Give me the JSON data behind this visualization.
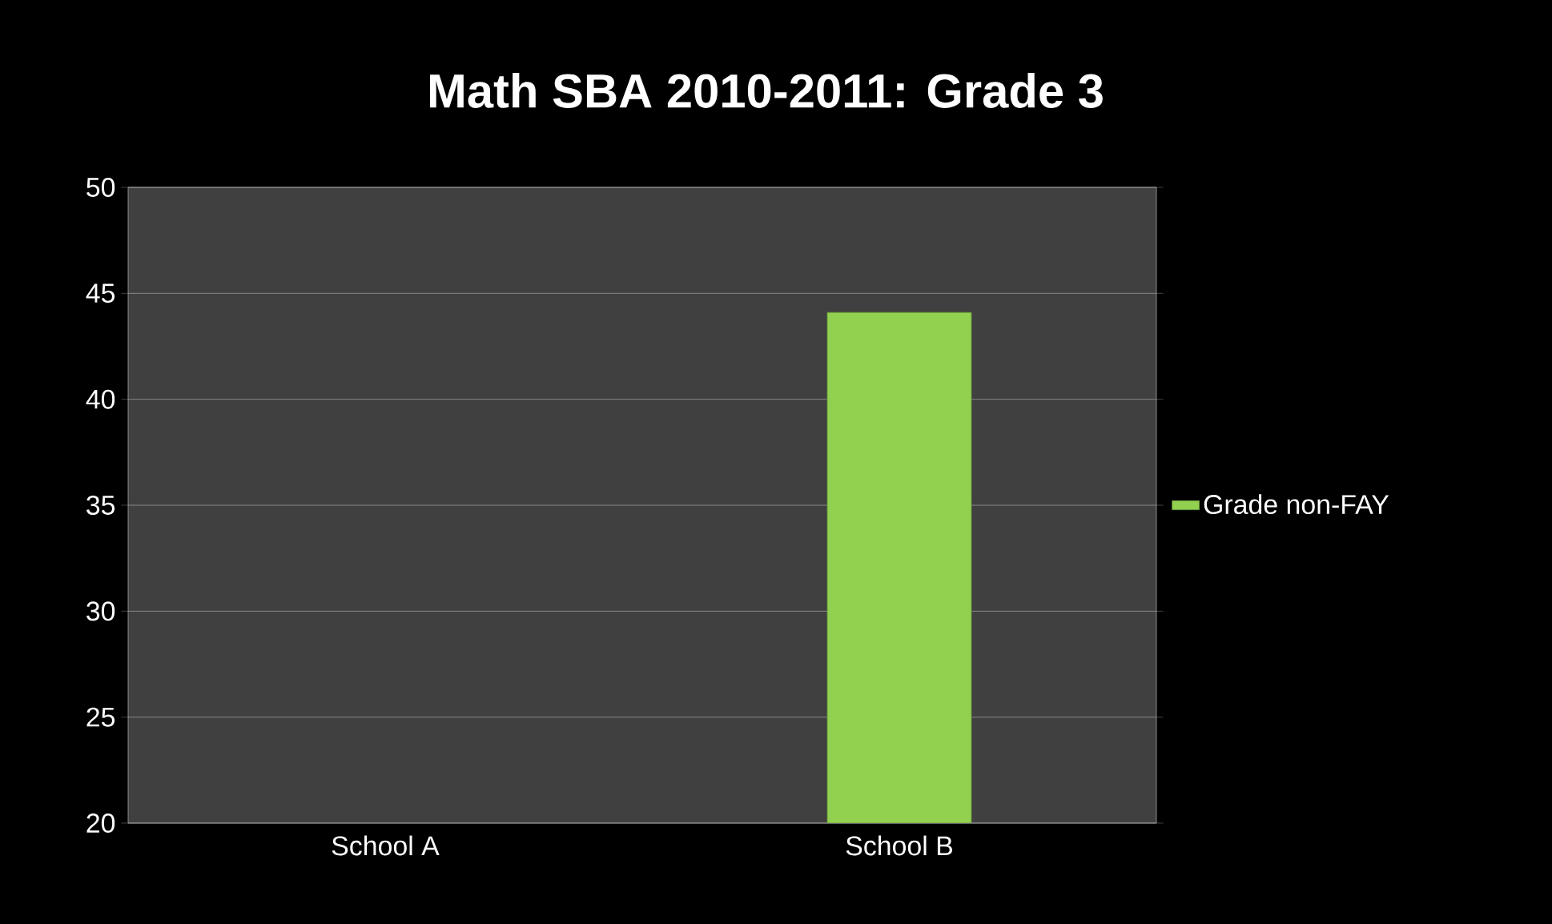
{
  "chart_data": {
    "type": "bar",
    "title": "Math SBA 2010-2011: Grade 3",
    "categories": [
      "School A",
      "School B"
    ],
    "series": [
      {
        "name": "Grade non-FAY",
        "color": "#92d050",
        "values": [
          null,
          44.1
        ]
      }
    ],
    "ylim": [
      20,
      50
    ],
    "yticks": [
      20,
      25,
      30,
      35,
      40,
      45,
      50
    ],
    "grid": "y",
    "legend": "right"
  }
}
